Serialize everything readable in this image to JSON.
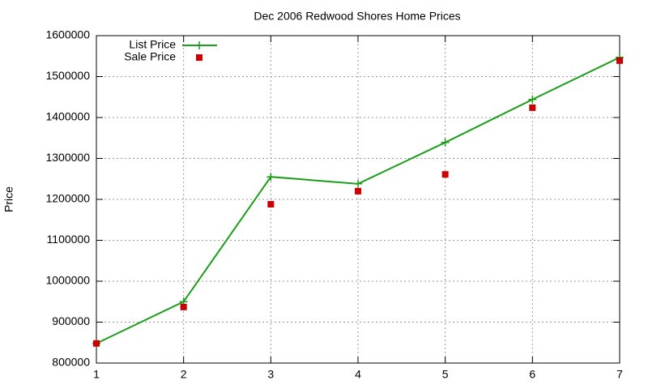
{
  "chart_data": {
    "type": "line",
    "title": "Dec 2006 Redwood Shores Home Prices",
    "y_label": "Price",
    "x": [
      1,
      2,
      3,
      4,
      5,
      6,
      7
    ],
    "series": [
      {
        "name": "List Price",
        "color": "#1a9e1a",
        "mode": "lines+markers",
        "marker": "plus",
        "values": [
          848000,
          950000,
          1255000,
          1238000,
          1339000,
          1444000,
          1547000
        ]
      },
      {
        "name": "Sale Price",
        "color": "#cc0000",
        "mode": "markers",
        "marker": "square",
        "values": [
          848000,
          937000,
          1188000,
          1220000,
          1261000,
          1424000,
          1539000
        ]
      }
    ],
    "xlim": [
      1,
      7
    ],
    "xticks": [
      1,
      2,
      3,
      4,
      5,
      6,
      7
    ],
    "ylim": [
      800000,
      1600000
    ],
    "yticks": [
      800000,
      900000,
      1000000,
      1100000,
      1200000,
      1300000,
      1400000,
      1500000,
      1600000
    ],
    "grid": true,
    "legend": "top left"
  }
}
